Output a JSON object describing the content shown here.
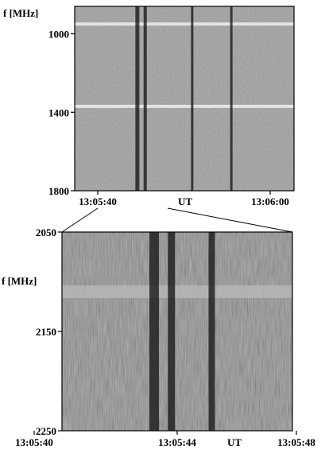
{
  "chart_data": [
    {
      "type": "heatmap",
      "title": "",
      "ylabel": "f [MHz]",
      "xlabel": "UT",
      "ylim": [
        1800,
        860
      ],
      "y_ticks": [
        1000,
        1400,
        1800
      ],
      "y_tick_labels": [
        "1000",
        "1400",
        "1800"
      ],
      "x_tick_labels": [
        "13:05:40",
        "13:06:00"
      ],
      "x_range": [
        "13:05:35",
        "13:06:03"
      ],
      "colormap": "grayscale (dark = enhanced emission)",
      "features": [
        {
          "kind": "horizontal band",
          "freq_mhz": 950,
          "tone": "bright"
        },
        {
          "kind": "horizontal band",
          "freq_mhz": 1370,
          "tone": "bright"
        },
        {
          "kind": "vertical burst",
          "time": "13:05:43",
          "tone": "dark"
        },
        {
          "kind": "vertical burst",
          "time": "13:05:44",
          "tone": "dark"
        },
        {
          "kind": "vertical burst",
          "time": "13:05:50",
          "tone": "dark"
        },
        {
          "kind": "vertical burst",
          "time": "13:05:55",
          "tone": "dark"
        }
      ]
    },
    {
      "type": "heatmap",
      "title": "",
      "ylabel": "f [MHz]",
      "xlabel": "UT",
      "ylim": [
        2250,
        2050
      ],
      "y_ticks": [
        2050,
        2150,
        2250
      ],
      "y_tick_labels": [
        "2050",
        "2150",
        "2250"
      ],
      "x_tick_labels": [
        "13:05:40",
        "13:05:44",
        "13:05:48"
      ],
      "x_range": [
        "13:05:40",
        "13:05:48"
      ],
      "colormap": "grayscale (dark = enhanced emission)",
      "features": [
        {
          "kind": "horizontal band",
          "freq_mhz": 2110,
          "tone": "light"
        },
        {
          "kind": "vertical burst",
          "time": "13:05:43.2",
          "tone": "dark"
        },
        {
          "kind": "vertical burst",
          "time": "13:05:43.8",
          "tone": "dark"
        },
        {
          "kind": "vertical burst",
          "time": "13:05:45.2",
          "tone": "dark"
        }
      ]
    }
  ]
}
